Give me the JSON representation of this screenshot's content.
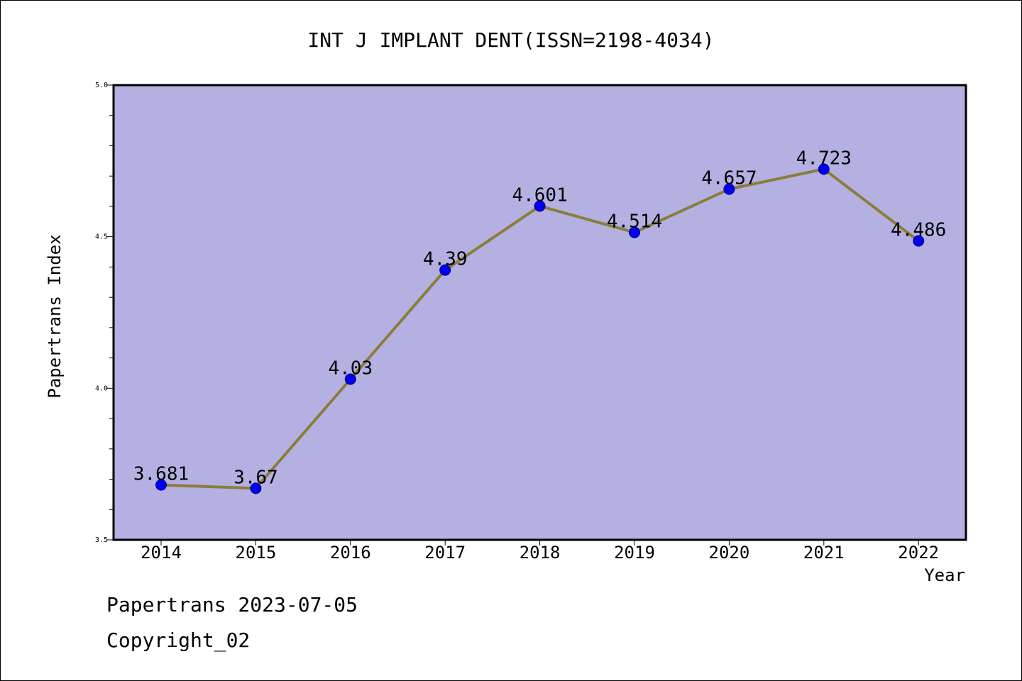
{
  "chart_data": {
    "type": "line",
    "title": "INT J IMPLANT DENT(ISSN=2198-4034)",
    "xlabel": "Year",
    "ylabel": "Papertrans Index",
    "categories": [
      "2014",
      "2015",
      "2016",
      "2017",
      "2018",
      "2019",
      "2020",
      "2021",
      "2022"
    ],
    "values": [
      3.681,
      3.67,
      4.03,
      4.39,
      4.601,
      4.514,
      4.657,
      4.723,
      4.486
    ],
    "data_labels": [
      "3.681",
      "3.67",
      "4.03",
      "4.39",
      "4.601",
      "4.514",
      "4.657",
      "4.723",
      "4.486"
    ],
    "ylim": [
      3.5,
      5.0
    ],
    "yticks": [
      "3.5",
      "4.0",
      "4.5",
      "5.0"
    ],
    "grid": false,
    "legend": "none",
    "colors": {
      "plot_background": "#b5b0e2",
      "line": "#8b7d3a",
      "marker": "#0000ee",
      "marker_edge": "#00008b"
    }
  },
  "footer": {
    "date_line": "Papertrans 2023-07-05",
    "copyright": "Copyright_02"
  }
}
